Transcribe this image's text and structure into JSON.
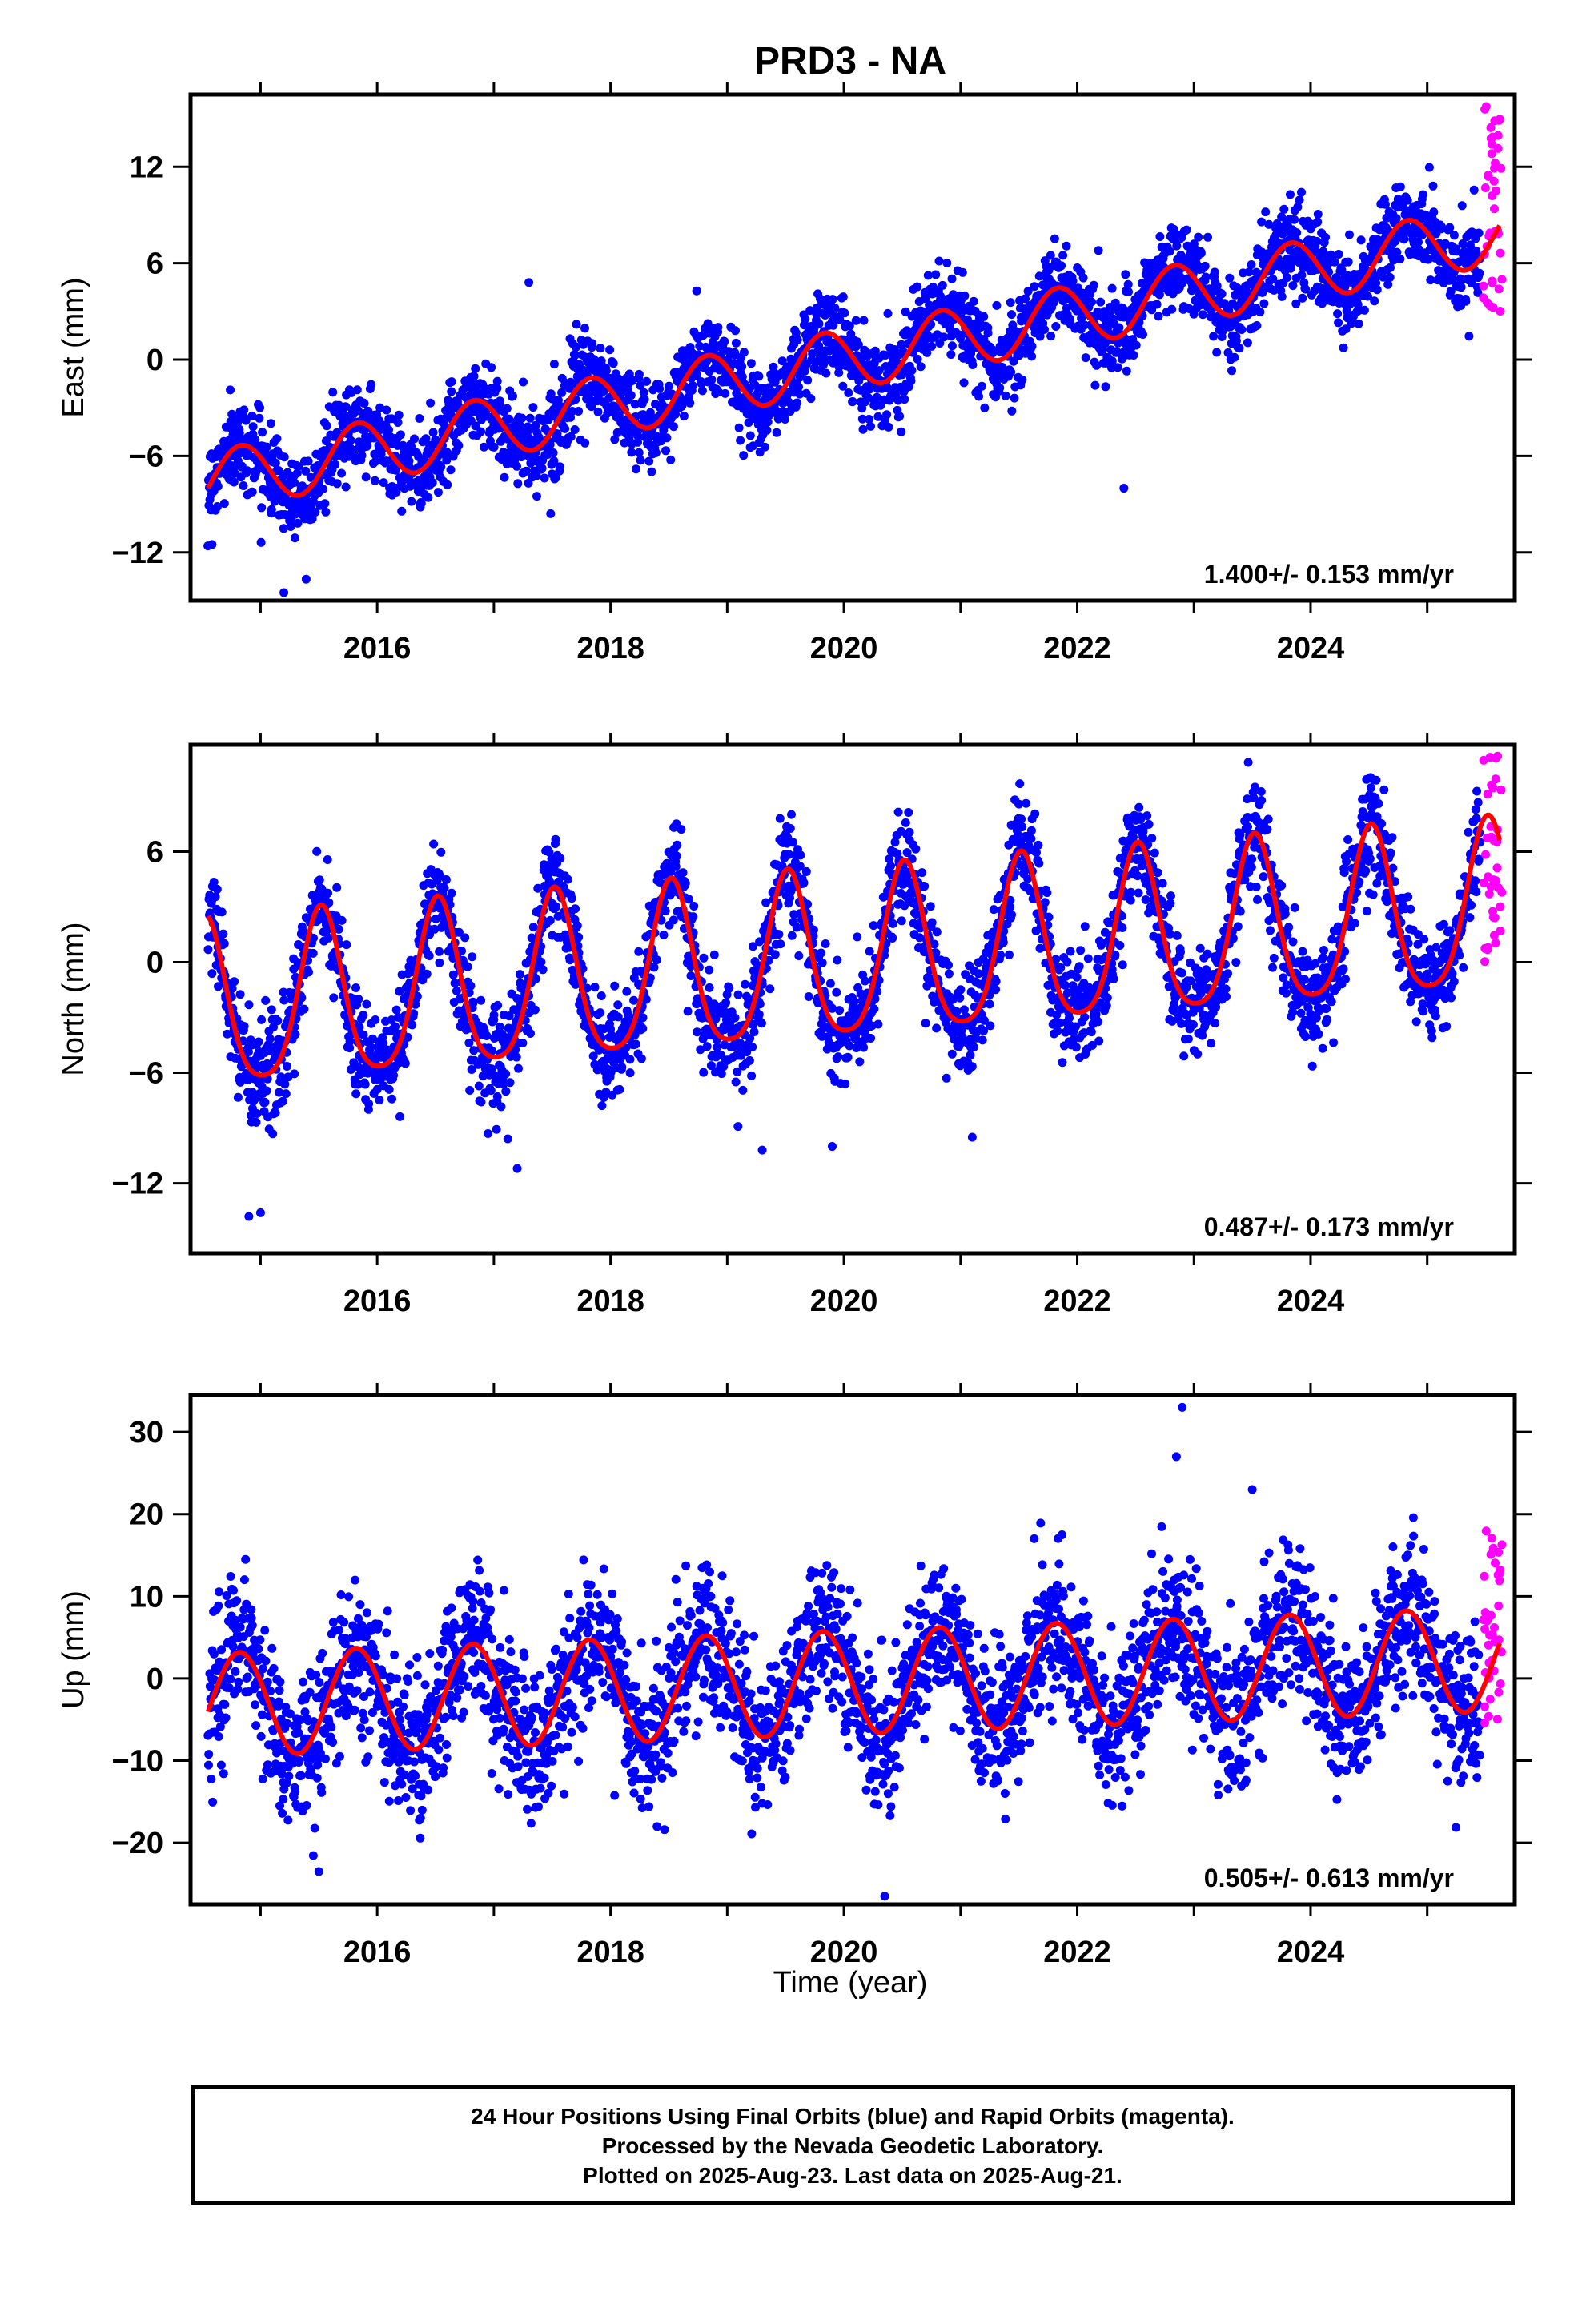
{
  "title": "PRD3 - NA",
  "xlabel": "Time (year)",
  "colors": {
    "final_orbits": "#0000ff",
    "rapid_orbits": "#ff00ff",
    "model_fit": "#ff0000",
    "frame": "#000000"
  },
  "chart_data": [
    {
      "type": "scatter",
      "component": "East",
      "ylabel": "East (mm)",
      "x_ticks": [
        "2016",
        "2018",
        "2020",
        "2022",
        "2024"
      ],
      "y_ticks": [
        "12",
        "6",
        "0",
        "-6",
        "-12"
      ],
      "xlim": [
        2014.4,
        2025.75
      ],
      "ylim": [
        -15.0,
        16.5
      ],
      "rate_label": "1.400+/- 0.153 mm/yr",
      "model": {
        "rate_mm_per_yr": 1.4,
        "offset_mm_at_2020": 0.0,
        "annual_amplitude_mm": 1.9,
        "annual_peak_year_fraction": 0.83,
        "semiannual_amplitude_mm": 0.0
      },
      "series": [
        {
          "name": "Final Orbits",
          "color": "#0000ff",
          "x_range": [
            2014.55,
            2025.45
          ],
          "n_points": 3100,
          "scatter_sd_mm": 1.3
        },
        {
          "name": "Rapid Orbits",
          "color": "#ff00ff",
          "x_range": [
            2025.48,
            2025.64
          ],
          "n_points": 40,
          "y_range": [
            2.8,
            15.8
          ]
        },
        {
          "name": "Model Fit",
          "color": "#ff0000",
          "x_range": [
            2014.55,
            2025.62
          ]
        }
      ],
      "outliers": [
        {
          "x": 2017.3,
          "y": 4.8
        },
        {
          "x": 2022.4,
          "y": -8.0
        },
        {
          "x": 2015.2,
          "y": -14.5
        }
      ]
    },
    {
      "type": "scatter",
      "component": "North",
      "ylabel": "North (mm)",
      "x_ticks": [
        "2016",
        "2018",
        "2020",
        "2022",
        "2024"
      ],
      "y_ticks": [
        "6",
        "0",
        "-6",
        "-12"
      ],
      "xlim": [
        2014.4,
        2025.75
      ],
      "ylim": [
        -15.8,
        11.8
      ],
      "rate_label": "0.487+/- 0.173 mm/yr",
      "model": {
        "rate_mm_per_yr": 0.487,
        "offset_mm_at_2020": 0.0,
        "annual_amplitude_mm": 4.5,
        "annual_peak_year_fraction": 0.52,
        "semiannual_amplitude_mm": 0.8
      },
      "series": [
        {
          "name": "Final Orbits",
          "color": "#0000ff",
          "x_range": [
            2014.55,
            2025.45
          ],
          "n_points": 3100,
          "scatter_sd_mm": 1.4
        },
        {
          "name": "Rapid Orbits",
          "color": "#ff00ff",
          "x_range": [
            2025.48,
            2025.64
          ],
          "n_points": 40,
          "y_range": [
            -0.6,
            11.2
          ]
        },
        {
          "name": "Model Fit",
          "color": "#ff0000",
          "x_range": [
            2014.55,
            2025.62
          ]
        }
      ],
      "outliers": [
        {
          "x": 2014.9,
          "y": -13.8
        },
        {
          "x": 2015.0,
          "y": -13.6
        },
        {
          "x": 2017.2,
          "y": -11.2
        },
        {
          "x": 2019.9,
          "y": -10.0
        },
        {
          "x": 2021.1,
          "y": -9.5
        },
        {
          "x": 2019.3,
          "y": -10.2
        }
      ]
    },
    {
      "type": "scatter",
      "component": "Up",
      "ylabel": "Up (mm)",
      "x_ticks": [
        "2016",
        "2018",
        "2020",
        "2022",
        "2024"
      ],
      "y_ticks": [
        "30",
        "20",
        "10",
        "0",
        "-10",
        "-20"
      ],
      "xlim": [
        2014.4,
        2025.75
      ],
      "ylim": [
        -27.5,
        34.5
      ],
      "rate_label": "0.505+/- 0.613 mm/yr",
      "model": {
        "rate_mm_per_yr": 0.505,
        "offset_mm_at_2020": -0.5,
        "annual_amplitude_mm": 6.3,
        "annual_peak_year_fraction": 0.82,
        "semiannual_amplitude_mm": 0.0
      },
      "series": [
        {
          "name": "Final Orbits",
          "color": "#0000ff",
          "x_range": [
            2014.55,
            2025.45
          ],
          "n_points": 3100,
          "scatter_sd_mm": 4.5
        },
        {
          "name": "Rapid Orbits",
          "color": "#ff00ff",
          "x_range": [
            2025.48,
            2025.64
          ],
          "n_points": 40,
          "y_range": [
            -6.0,
            18.0
          ]
        },
        {
          "name": "Model Fit",
          "color": "#ff0000",
          "x_range": [
            2014.55,
            2025.62
          ]
        }
      ],
      "outliers": [
        {
          "x": 2022.9,
          "y": 33.0
        },
        {
          "x": 2022.85,
          "y": 27.0
        },
        {
          "x": 2023.5,
          "y": 23.0
        },
        {
          "x": 2015.5,
          "y": -23.5
        },
        {
          "x": 2020.35,
          "y": -26.5
        }
      ]
    }
  ],
  "caption": {
    "line1": "24 Hour Positions Using Final Orbits (blue) and Rapid Orbits (magenta).",
    "line2": "Processed by the Nevada Geodetic Laboratory.",
    "line3": "Plotted on 2025-Aug-23. Last data on 2025-Aug-21."
  }
}
